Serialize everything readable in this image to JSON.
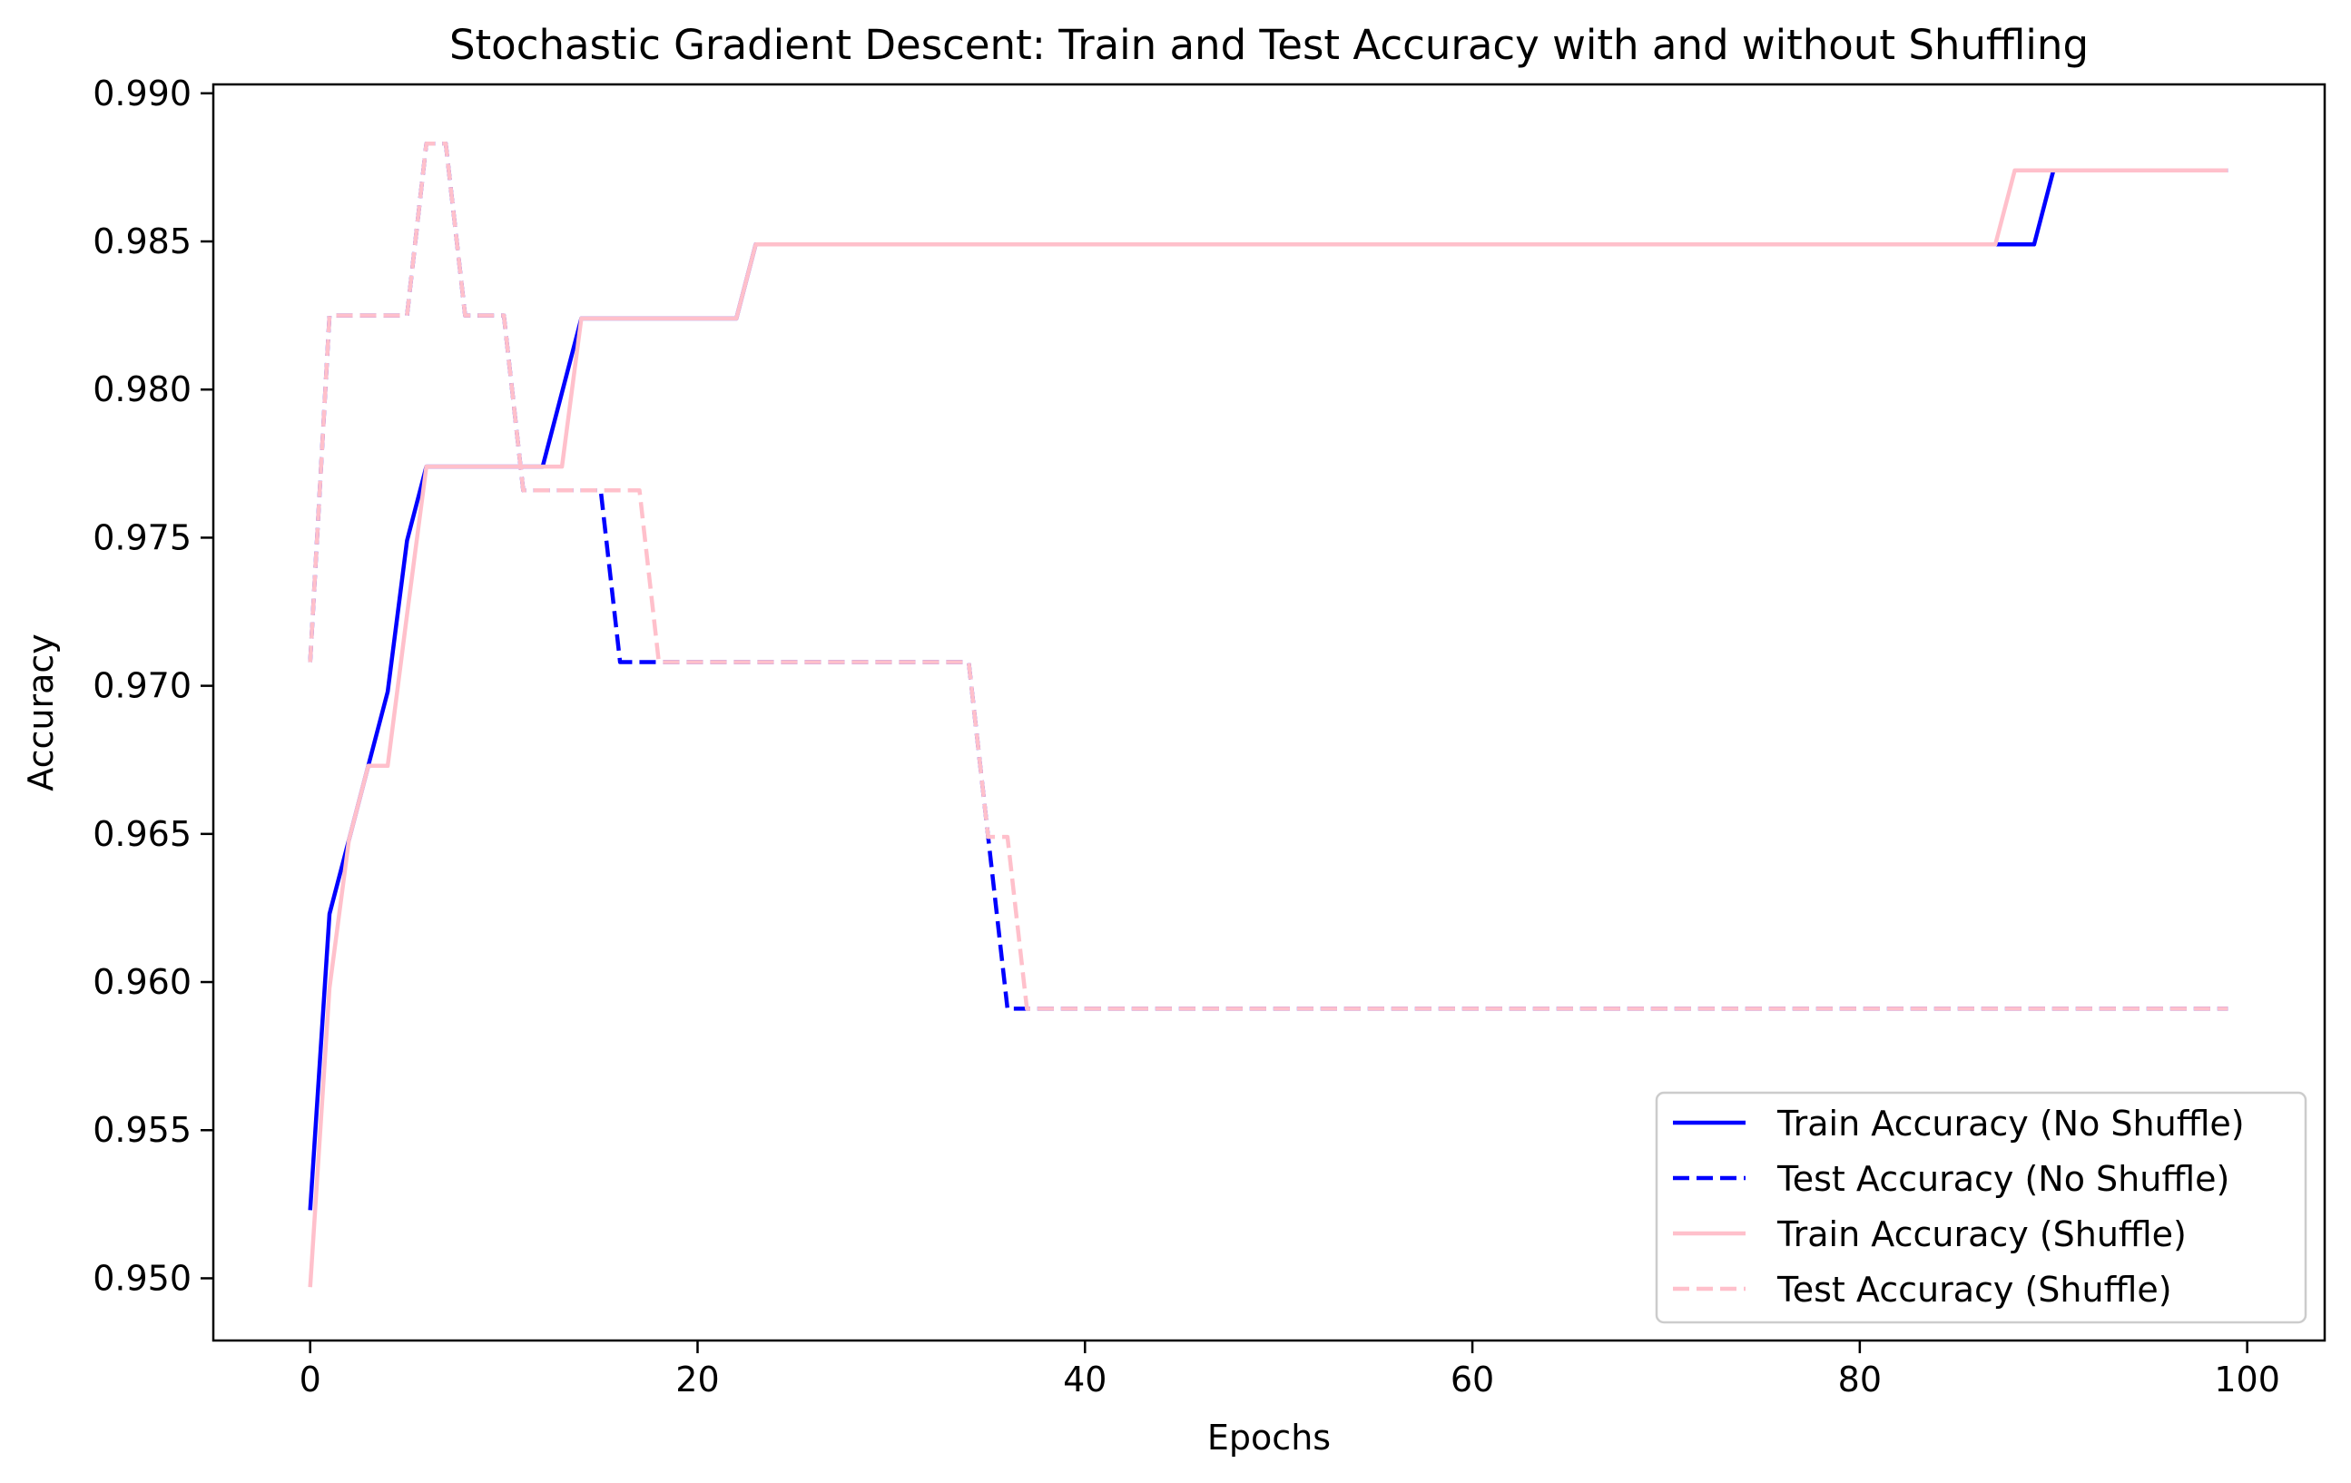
{
  "chart_data": {
    "type": "line",
    "title": "Stochastic Gradient Descent: Train and Test Accuracy with and without Shuffling",
    "xlabel": "Epochs",
    "ylabel": "Accuracy",
    "xlim": [
      -5,
      104
    ],
    "ylim": [
      0.9479,
      0.9903
    ],
    "xticks": [
      0,
      20,
      40,
      60,
      80,
      100
    ],
    "xtick_labels": [
      "0",
      "20",
      "40",
      "60",
      "80",
      "100"
    ],
    "yticks": [
      0.95,
      0.955,
      0.96,
      0.965,
      0.97,
      0.975,
      0.98,
      0.985,
      0.99
    ],
    "ytick_labels": [
      "0.950",
      "0.955",
      "0.960",
      "0.965",
      "0.970",
      "0.975",
      "0.980",
      "0.985",
      "0.990"
    ],
    "grid": false,
    "legend_position": "lower-right",
    "series": [
      {
        "name": "Train Accuracy (No Shuffle)",
        "color": "#0000ff",
        "style": "solid",
        "points": [
          [
            0,
            0.9523
          ],
          [
            1,
            0.9623
          ],
          [
            2,
            0.9648
          ],
          [
            3,
            0.9673
          ],
          [
            4,
            0.9698
          ],
          [
            5,
            0.9749
          ],
          [
            6,
            0.9774
          ],
          [
            12,
            0.9774
          ],
          [
            13,
            0.9799
          ],
          [
            14,
            0.9824
          ],
          [
            22,
            0.9824
          ],
          [
            23,
            0.9849
          ],
          [
            89,
            0.9849
          ],
          [
            90,
            0.9874
          ],
          [
            99,
            0.9874
          ]
        ]
      },
      {
        "name": "Test Accuracy (No Shuffle)",
        "color": "#0000ff",
        "style": "dashed",
        "points": [
          [
            0,
            0.9708
          ],
          [
            1,
            0.9825
          ],
          [
            5,
            0.9825
          ],
          [
            6,
            0.9883
          ],
          [
            7,
            0.9883
          ],
          [
            8,
            0.9825
          ],
          [
            10,
            0.9825
          ],
          [
            11,
            0.9766
          ],
          [
            15,
            0.9766
          ],
          [
            16,
            0.9708
          ],
          [
            34,
            0.9708
          ],
          [
            35,
            0.9649
          ],
          [
            36,
            0.9591
          ],
          [
            99,
            0.9591
          ]
        ]
      },
      {
        "name": "Train Accuracy (Shuffle)",
        "color": "#ffc0cb",
        "style": "solid",
        "points": [
          [
            0,
            0.9497
          ],
          [
            1,
            0.9598
          ],
          [
            2,
            0.9648
          ],
          [
            3,
            0.9673
          ],
          [
            4,
            0.9673
          ],
          [
            5,
            0.9724
          ],
          [
            6,
            0.9774
          ],
          [
            13,
            0.9774
          ],
          [
            14,
            0.9824
          ],
          [
            22,
            0.9824
          ],
          [
            23,
            0.9849
          ],
          [
            87,
            0.9849
          ],
          [
            88,
            0.9874
          ],
          [
            99,
            0.9874
          ]
        ]
      },
      {
        "name": "Test Accuracy (Shuffle)",
        "color": "#ffc0cb",
        "style": "dashed",
        "points": [
          [
            0,
            0.9708
          ],
          [
            1,
            0.9825
          ],
          [
            5,
            0.9825
          ],
          [
            6,
            0.9883
          ],
          [
            7,
            0.9883
          ],
          [
            8,
            0.9825
          ],
          [
            10,
            0.9825
          ],
          [
            11,
            0.9766
          ],
          [
            17,
            0.9766
          ],
          [
            18,
            0.9708
          ],
          [
            34,
            0.9708
          ],
          [
            35,
            0.9649
          ],
          [
            36,
            0.9649
          ],
          [
            37,
            0.9591
          ],
          [
            99,
            0.9591
          ]
        ]
      }
    ]
  }
}
